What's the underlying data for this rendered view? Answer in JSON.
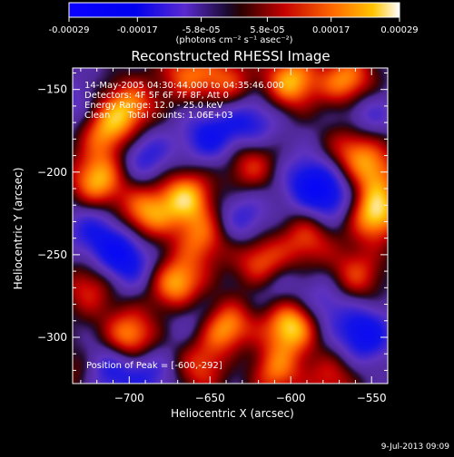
{
  "colorbar": {
    "tick_labels": [
      "-0.00029",
      "-0.00017",
      "-5.8e-05",
      "5.8e-05",
      "0.00017",
      "0.00029"
    ],
    "units_label": "(photons cm⁻² s⁻¹ asec⁻²)",
    "range": [
      -0.00029,
      0.00029
    ]
  },
  "chart_data": {
    "type": "heatmap",
    "title": "Reconstructed RHESSI Image",
    "xlabel": "Heliocentric X (arcsec)",
    "ylabel": "Heliocentric Y (arcsec)",
    "xlim": [
      -735,
      -540
    ],
    "ylim": [
      -328,
      -137
    ],
    "x_ticks": [
      -700,
      -650,
      -600,
      -550
    ],
    "y_ticks": [
      -150,
      -200,
      -250,
      -300
    ],
    "x_tick_labels": [
      "−700",
      "−650",
      "−600",
      "−550"
    ],
    "y_tick_labels": [
      "−150",
      "−200",
      "−250",
      "−300"
    ],
    "annotations": [
      "14-May-2005 04:30:44.000 to 04:35:46.000",
      "Detectors: 4F 5F 6F 7F 8F, Att 0",
      "Energy Range: 12.0 - 25.0 keV",
      "Clean      Total counts: 1.06E+03"
    ],
    "peak_label": "Position of Peak = [-600,-292]",
    "peak": [
      -600,
      -292
    ],
    "blobs": [
      {
        "x": -600,
        "y": -292,
        "v": 1.0
      },
      {
        "x": -640,
        "y": -295,
        "v": 0.95
      },
      {
        "x": -670,
        "y": -268,
        "v": 0.9
      },
      {
        "x": -700,
        "y": -300,
        "v": 0.85
      },
      {
        "x": -720,
        "y": -205,
        "v": 0.85
      },
      {
        "x": -700,
        "y": -160,
        "v": 0.7
      },
      {
        "x": -715,
        "y": -175,
        "v": 0.7
      },
      {
        "x": -665,
        "y": -140,
        "v": 0.6
      },
      {
        "x": -640,
        "y": -145,
        "v": 0.55
      },
      {
        "x": -600,
        "y": -145,
        "v": 0.85
      },
      {
        "x": -565,
        "y": -145,
        "v": 0.8
      },
      {
        "x": -562,
        "y": -185,
        "v": 0.6
      },
      {
        "x": -625,
        "y": -195,
        "v": 0.55
      },
      {
        "x": -665,
        "y": -215,
        "v": 0.85
      },
      {
        "x": -690,
        "y": -225,
        "v": 0.75
      },
      {
        "x": -655,
        "y": -240,
        "v": 0.6
      },
      {
        "x": -618,
        "y": -255,
        "v": 0.7
      },
      {
        "x": -590,
        "y": -240,
        "v": 0.55
      },
      {
        "x": -548,
        "y": -225,
        "v": 0.95
      },
      {
        "x": -548,
        "y": -200,
        "v": 0.6
      },
      {
        "x": -560,
        "y": -262,
        "v": 0.55
      },
      {
        "x": -610,
        "y": -320,
        "v": 0.65
      },
      {
        "x": -655,
        "y": -318,
        "v": 0.55
      },
      {
        "x": -725,
        "y": -270,
        "v": 0.5
      },
      {
        "x": -730,
        "y": -320,
        "v": 0.4
      },
      {
        "x": -575,
        "y": -325,
        "v": 0.45
      },
      {
        "x": -690,
        "y": -190,
        "v": -0.45
      },
      {
        "x": -650,
        "y": -178,
        "v": -0.55
      },
      {
        "x": -625,
        "y": -170,
        "v": -0.5
      },
      {
        "x": -590,
        "y": -205,
        "v": -0.5
      },
      {
        "x": -555,
        "y": -165,
        "v": -0.45
      },
      {
        "x": -575,
        "y": -215,
        "v": -0.55
      },
      {
        "x": -630,
        "y": -228,
        "v": -0.4
      },
      {
        "x": -700,
        "y": -255,
        "v": -0.45
      },
      {
        "x": -710,
        "y": -245,
        "v": -0.4
      },
      {
        "x": -660,
        "y": -285,
        "v": -0.35
      },
      {
        "x": -610,
        "y": -270,
        "v": -0.35
      },
      {
        "x": -580,
        "y": -280,
        "v": -0.4
      },
      {
        "x": -555,
        "y": -298,
        "v": -0.65
      },
      {
        "x": -715,
        "y": -318,
        "v": -0.6
      },
      {
        "x": -690,
        "y": -320,
        "v": -0.45
      },
      {
        "x": -635,
        "y": -308,
        "v": -0.3
      },
      {
        "x": -725,
        "y": -233,
        "v": -0.35
      },
      {
        "x": -735,
        "y": -160,
        "v": -0.3
      }
    ]
  },
  "footer": {
    "timestamp": "9-Jul-2013 09:09"
  }
}
